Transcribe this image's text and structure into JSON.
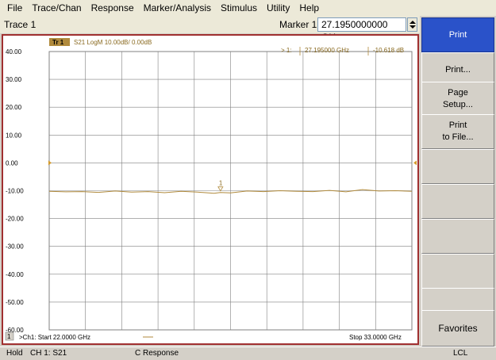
{
  "menu": [
    "File",
    "Trace/Chan",
    "Response",
    "Marker/Analysis",
    "Stimulus",
    "Utility",
    "Help"
  ],
  "title_bar": {
    "trace_name": "Trace 1",
    "marker_label": "Marker 1",
    "marker_value": "27.1950000000 GHz"
  },
  "trace": {
    "badge": "Tr 1",
    "descriptor": "S21 LogM 10.00dB/ 0.00dB",
    "color": "#b08a3c"
  },
  "marker_readout": {
    "id": "> 1:",
    "freq": "27.195000 GHz",
    "value": "-10.618 dB",
    "marker_number": "1"
  },
  "chart_data": {
    "type": "line",
    "y_tick_labels": [
      "40.00",
      "30.00",
      "20.00",
      "10.00",
      "0.00",
      "-10.00",
      "-20.00",
      "-30.00",
      "-40.00",
      "-50.00",
      "-60.00"
    ],
    "ylim": [
      -60,
      40
    ],
    "xlim": [
      22.0,
      33.0
    ],
    "grid": true,
    "reference_level": 0.0,
    "series": [
      {
        "x": [
          22.0,
          22.5,
          23.0,
          23.5,
          24.0,
          24.5,
          25.0,
          25.5,
          26.0,
          26.5,
          27.0,
          27.195,
          27.5,
          28.0,
          28.5,
          29.0,
          29.5,
          30.0,
          30.5,
          31.0,
          31.5,
          32.0,
          32.5,
          33.0
        ],
        "y": [
          -10.2,
          -10.4,
          -10.3,
          -10.6,
          -10.1,
          -10.5,
          -10.3,
          -10.7,
          -10.2,
          -10.5,
          -10.9,
          -10.618,
          -10.8,
          -10.1,
          -10.3,
          -10.0,
          -10.2,
          -10.3,
          -9.9,
          -10.4,
          -9.6,
          -10.1,
          -10.0,
          -10.2
        ]
      }
    ]
  },
  "footer": {
    "channel_number": "1",
    "start": ">Ch1: Start  22.0000 GHz",
    "stop": "Stop  33.0000 GHz"
  },
  "softkeys": [
    "Print",
    "Print...",
    "Page\nSetup...",
    "Print\nto File...",
    "",
    "",
    "",
    "",
    "",
    "Favorites"
  ],
  "status_bar": {
    "hold": "Hold",
    "channel": "CH 1:  S21",
    "cal": "C  Response",
    "lcl": "LCL"
  }
}
